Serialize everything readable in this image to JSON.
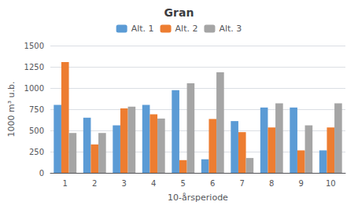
{
  "chart_data": {
    "type": "bar",
    "title": "Gran",
    "xlabel": "10-årsperiode",
    "ylabel": "1000 m³ u.b.",
    "categories": [
      1,
      2,
      3,
      4,
      5,
      6,
      7,
      8,
      9,
      10
    ],
    "series": [
      {
        "name": "Alt. 1",
        "color": "#5B9BD5",
        "values": [
          800,
          650,
          560,
          800,
          975,
          160,
          610,
          770,
          770,
          265
        ]
      },
      {
        "name": "Alt. 2",
        "color": "#ED7D31",
        "values": [
          1305,
          335,
          760,
          690,
          150,
          635,
          480,
          535,
          265,
          535
        ]
      },
      {
        "name": "Alt. 3",
        "color": "#A5A5A5",
        "values": [
          470,
          470,
          780,
          640,
          1055,
          1185,
          175,
          820,
          560,
          820
        ]
      }
    ],
    "ylim": [
      0,
      1500
    ],
    "yticks": [
      0,
      250,
      500,
      750,
      1000,
      1250,
      1500
    ],
    "grid": true,
    "legend": "top"
  }
}
